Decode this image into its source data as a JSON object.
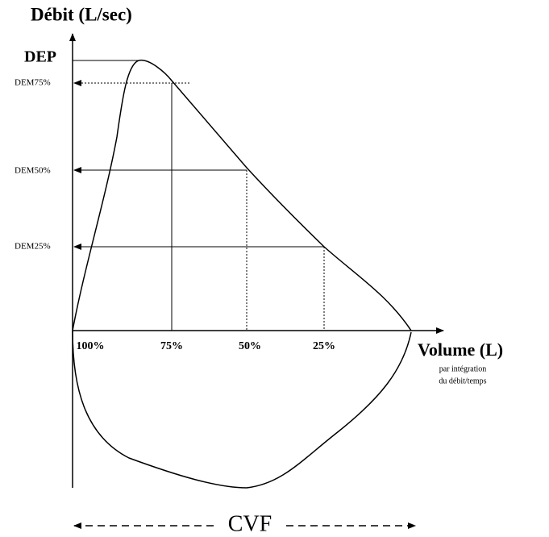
{
  "title": "Débit (L/sec)",
  "y_labels": {
    "dep": "DEP",
    "dem75": "DEM75%",
    "dem50": "DEM50%",
    "dem25": "DEM25%"
  },
  "x_labels": [
    "100%",
    "75%",
    "50%",
    "25%"
  ],
  "x_axis": {
    "title": "Volume (L)",
    "note": [
      "par intégration",
      "du débit/temps"
    ]
  },
  "span_label": "CVF"
}
